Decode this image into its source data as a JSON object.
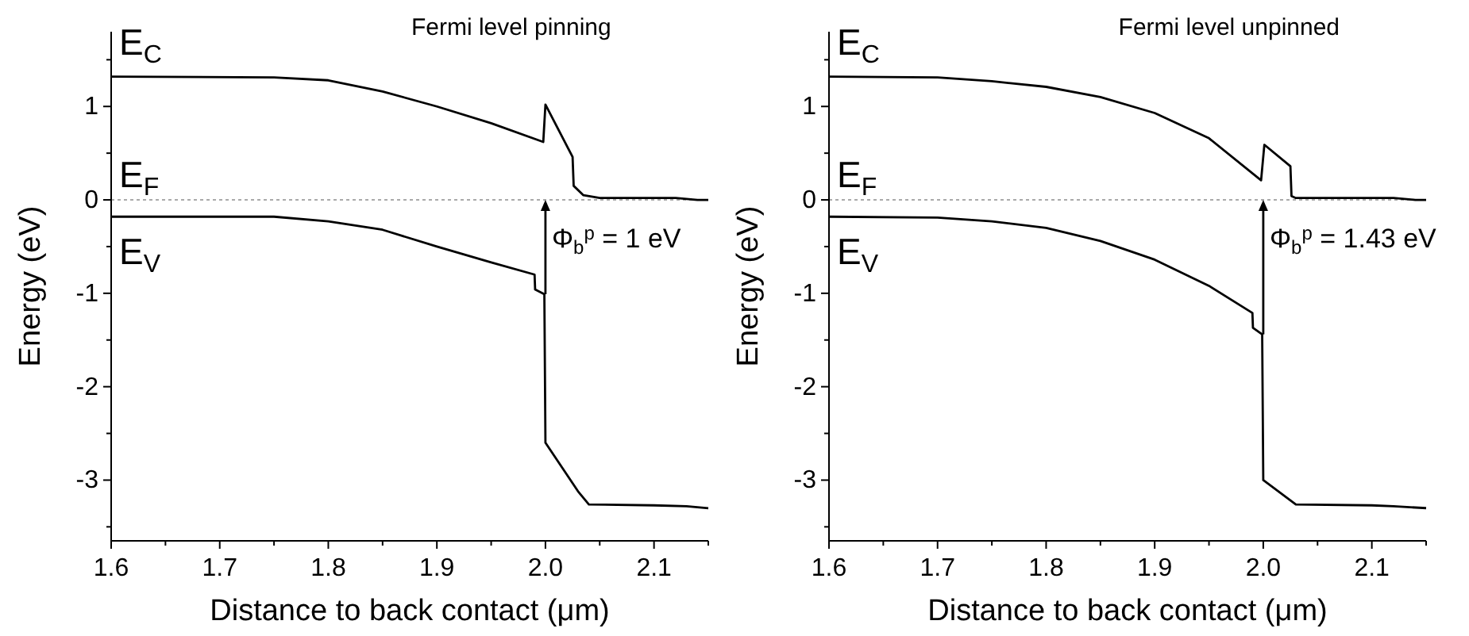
{
  "chart_data": [
    {
      "type": "line",
      "title": "Fermi level pinning",
      "xlabel": "Distance to back contact (μm)",
      "ylabel": "Energy (eV)",
      "xlim": [
        1.6,
        2.15
      ],
      "xticks": [
        {
          "value": 1.6,
          "label": "1.6"
        },
        {
          "value": 1.65,
          "label": null
        },
        {
          "value": 1.7,
          "label": "1.7"
        },
        {
          "value": 1.75,
          "label": null
        },
        {
          "value": 1.8,
          "label": "1.8"
        },
        {
          "value": 1.85,
          "label": null
        },
        {
          "value": 1.9,
          "label": "1.9"
        },
        {
          "value": 1.95,
          "label": null
        },
        {
          "value": 2.0,
          "label": "2.0"
        },
        {
          "value": 2.05,
          "label": null
        },
        {
          "value": 2.1,
          "label": "2.1"
        },
        {
          "value": 2.15,
          "label": null
        }
      ],
      "ylim": [
        -3.65,
        1.8
      ],
      "yticks": [
        {
          "value": -3.5,
          "label": null
        },
        -3,
        {
          "value": -2.5,
          "label": null
        },
        -2,
        {
          "value": -1.5,
          "label": null
        },
        -1,
        {
          "value": -0.5,
          "label": null
        },
        0,
        {
          "value": 0.5,
          "label": null
        },
        1,
        {
          "value": 1.5,
          "label": null
        }
      ],
      "grid": false,
      "marker": "none",
      "line_style": "solid",
      "series": [
        {
          "name": "E$_{C}$",
          "color": "#000000",
          "x": [
            1.6,
            1.75,
            1.8,
            1.85,
            1.9,
            1.95,
            1.998,
            2.0,
            2.025,
            2.026,
            2.035,
            2.05,
            2.12,
            2.14,
            2.15
          ],
          "values": [
            1.32,
            1.31,
            1.28,
            1.16,
            1.0,
            0.82,
            0.62,
            1.02,
            0.46,
            0.15,
            0.05,
            0.02,
            0.02,
            0.0,
            0.0
          ]
        },
        {
          "name": "E$_{V}$",
          "color": "#000000",
          "x": [
            1.6,
            1.75,
            1.8,
            1.85,
            1.9,
            1.95,
            1.99,
            1.9905,
            1.999,
            2.0,
            2.03,
            2.04,
            2.1,
            2.13,
            2.15
          ],
          "values": [
            -0.18,
            -0.18,
            -0.23,
            -0.32,
            -0.5,
            -0.67,
            -0.8,
            -0.96,
            -1.01,
            -2.6,
            -3.12,
            -3.26,
            -3.27,
            -3.28,
            -3.3
          ]
        }
      ],
      "ref_lines": [
        {
          "axis": "y",
          "value": 0,
          "label": "E$_{F}$",
          "color": "#aaaaaa",
          "line_style": "dotted"
        }
      ],
      "annotations": [
        {
          "text": "Φ$_{b}$$^{p}$ = 1 eV",
          "x": 2.0,
          "y": 0
        }
      ]
    },
    {
      "type": "line",
      "title": "Fermi level unpinned",
      "xlabel": "Distance to back contact (μm)",
      "ylabel": "Energy (eV)",
      "xlim": [
        1.6,
        2.15
      ],
      "xticks": [
        {
          "value": 1.6,
          "label": "1.6"
        },
        {
          "value": 1.65,
          "label": null
        },
        {
          "value": 1.7,
          "label": "1.7"
        },
        {
          "value": 1.75,
          "label": null
        },
        {
          "value": 1.8,
          "label": "1.8"
        },
        {
          "value": 1.85,
          "label": null
        },
        {
          "value": 1.9,
          "label": "1.9"
        },
        {
          "value": 1.95,
          "label": null
        },
        {
          "value": 2.0,
          "label": "2.0"
        },
        {
          "value": 2.05,
          "label": null
        },
        {
          "value": 2.1,
          "label": "2.1"
        },
        {
          "value": 2.15,
          "label": null
        }
      ],
      "ylim": [
        -3.65,
        1.8
      ],
      "yticks": [
        {
          "value": -3.5,
          "label": null
        },
        -3,
        {
          "value": -2.5,
          "label": null
        },
        -2,
        {
          "value": -1.5,
          "label": null
        },
        -1,
        {
          "value": -0.5,
          "label": null
        },
        0,
        {
          "value": 0.5,
          "label": null
        },
        1,
        {
          "value": 1.5,
          "label": null
        }
      ],
      "grid": false,
      "marker": "none",
      "line_style": "solid",
      "series": [
        {
          "name": "E$_{C}$",
          "color": "#000000",
          "x": [
            1.6,
            1.7,
            1.75,
            1.8,
            1.85,
            1.9,
            1.95,
            1.998,
            2.001,
            2.025,
            2.026,
            2.03,
            2.12,
            2.14,
            2.15
          ],
          "values": [
            1.32,
            1.31,
            1.27,
            1.21,
            1.1,
            0.93,
            0.66,
            0.21,
            0.59,
            0.36,
            0.04,
            0.02,
            0.02,
            0.0,
            0.0
          ]
        },
        {
          "name": "E$_{V}$",
          "color": "#000000",
          "x": [
            1.6,
            1.7,
            1.75,
            1.8,
            1.85,
            1.9,
            1.95,
            1.99,
            1.9905,
            1.999,
            2.0,
            2.03,
            2.1,
            2.12,
            2.15
          ],
          "values": [
            -0.18,
            -0.19,
            -0.23,
            -0.3,
            -0.44,
            -0.64,
            -0.92,
            -1.21,
            -1.37,
            -1.44,
            -3.0,
            -3.26,
            -3.27,
            -3.28,
            -3.3
          ]
        }
      ],
      "ref_lines": [
        {
          "axis": "y",
          "value": 0,
          "label": "E$_{F}$",
          "color": "#aaaaaa",
          "line_style": "dotted"
        }
      ],
      "annotations": [
        {
          "text": "Φ$_{b}$$^{p}$ = 1.43 eV",
          "x": 2.0,
          "y": 0
        }
      ]
    }
  ]
}
